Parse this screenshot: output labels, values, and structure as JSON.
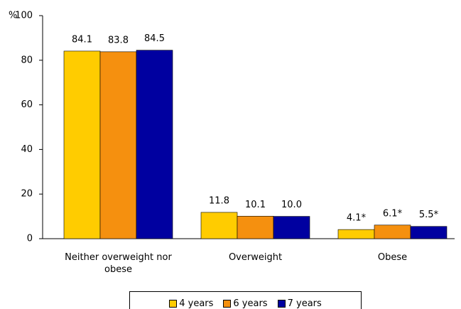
{
  "chart_data": {
    "type": "bar",
    "y_label": "%",
    "categories": [
      "Neither overweight nor obese",
      "Overweight",
      "Obese"
    ],
    "series": [
      {
        "name": "4 years",
        "color": "#ffcc00",
        "values": [
          84.1,
          11.8,
          4.1
        ],
        "value_labels": [
          "84.1",
          "11.8",
          "4.1*"
        ]
      },
      {
        "name": "6 years",
        "color": "#f5900f",
        "values": [
          83.8,
          10.1,
          6.1
        ],
        "value_labels": [
          "83.8",
          "10.1",
          "6.1*"
        ]
      },
      {
        "name": "7 years",
        "color": "#0000a0",
        "values": [
          84.5,
          10.0,
          5.5
        ],
        "value_labels": [
          "84.5",
          "10.0",
          "5.5*"
        ]
      }
    ],
    "ylim": [
      0,
      100
    ],
    "yticks": [
      0,
      20,
      40,
      60,
      80,
      100
    ],
    "grid": false,
    "legend": "bottom"
  }
}
